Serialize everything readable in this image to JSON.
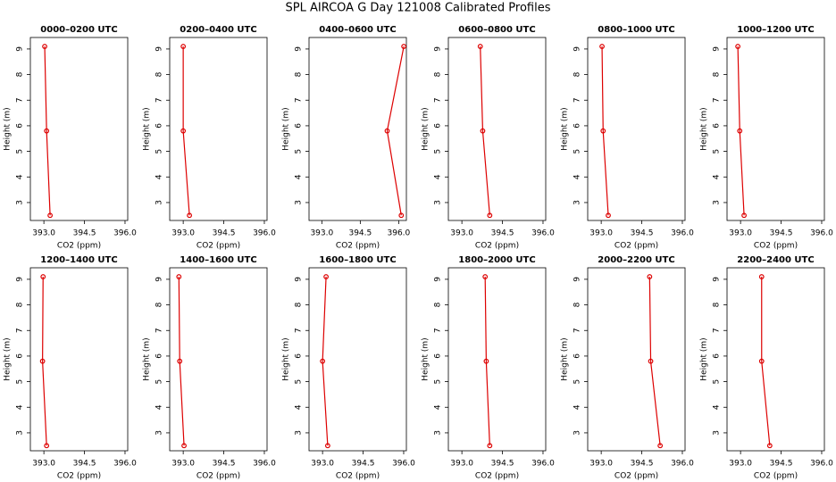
{
  "title": "SPL AIRCOA G  Day 121008  Calibrated Profiles",
  "chart_data": [
    {
      "type": "line",
      "title": "0000–0200 UTC",
      "x_label": "CO2 (ppm)",
      "y_label": "Height (m)",
      "color": "#dd0000",
      "x": [
        393.03,
        393.1,
        393.23
      ],
      "y": [
        9.1,
        5.8,
        2.5
      ],
      "xlim": [
        392.5,
        396.1
      ],
      "ylim": [
        2.3,
        9.45
      ],
      "xticks": [
        {
          "value": 393,
          "label": "393.0"
        },
        {
          "value": 394.5,
          "label": "394.5"
        },
        {
          "value": 396,
          "label": "396.0"
        }
      ],
      "yticks": [
        3,
        4,
        5,
        6,
        7,
        8,
        9
      ]
    },
    {
      "type": "line",
      "title": "0200–0400 UTC",
      "x_label": "CO2 (ppm)",
      "y_label": "Height (m)",
      "color": "#dd0000",
      "x": [
        393.0,
        393.0,
        393.23
      ],
      "y": [
        9.1,
        5.8,
        2.5
      ],
      "xlim": [
        392.5,
        396.1
      ],
      "ylim": [
        2.3,
        9.45
      ],
      "xticks": [
        {
          "value": 393,
          "label": "393.0"
        },
        {
          "value": 394.5,
          "label": "394.5"
        },
        {
          "value": 396,
          "label": "396.0"
        }
      ],
      "yticks": [
        3,
        4,
        5,
        6,
        7,
        8,
        9
      ]
    },
    {
      "type": "line",
      "title": "0400–0600 UTC",
      "x_label": "CO2 (ppm)",
      "y_label": "Height (m)",
      "color": "#dd0000",
      "x": [
        396.2,
        395.55,
        396.1
      ],
      "y": [
        9.1,
        5.8,
        2.5
      ],
      "xlim": [
        392.5,
        396.3
      ],
      "ylim": [
        2.3,
        9.45
      ],
      "xticks": [
        {
          "value": 393,
          "label": "393.0"
        },
        {
          "value": 394.5,
          "label": "394.5"
        },
        {
          "value": 396,
          "label": "396.0"
        }
      ],
      "yticks": [
        3,
        4,
        5,
        6,
        7,
        8,
        9
      ]
    },
    {
      "type": "line",
      "title": "0600–0800 UTC",
      "x_label": "CO2 (ppm)",
      "y_label": "Height (m)",
      "color": "#dd0000",
      "x": [
        393.68,
        393.77,
        394.03
      ],
      "y": [
        9.1,
        5.8,
        2.5
      ],
      "xlim": [
        392.5,
        396.1
      ],
      "ylim": [
        2.3,
        9.45
      ],
      "xticks": [
        {
          "value": 393,
          "label": "393.0"
        },
        {
          "value": 394.5,
          "label": "394.5"
        },
        {
          "value": 396,
          "label": "396.0"
        }
      ],
      "yticks": [
        3,
        4,
        5,
        6,
        7,
        8,
        9
      ]
    },
    {
      "type": "line",
      "title": "0800–1000 UTC",
      "x_label": "CO2 (ppm)",
      "y_label": "Height (m)",
      "color": "#dd0000",
      "x": [
        393.03,
        393.07,
        393.26
      ],
      "y": [
        9.1,
        5.8,
        2.5
      ],
      "xlim": [
        392.5,
        396.1
      ],
      "ylim": [
        2.3,
        9.45
      ],
      "xticks": [
        {
          "value": 393,
          "label": "393.0"
        },
        {
          "value": 394.5,
          "label": "394.5"
        },
        {
          "value": 396,
          "label": "396.0"
        }
      ],
      "yticks": [
        3,
        4,
        5,
        6,
        7,
        8,
        9
      ]
    },
    {
      "type": "line",
      "title": "1000–1200 UTC",
      "x_label": "CO2 (ppm)",
      "y_label": "Height (m)",
      "color": "#dd0000",
      "x": [
        392.9,
        392.97,
        393.13
      ],
      "y": [
        9.1,
        5.8,
        2.5
      ],
      "xlim": [
        392.5,
        396.1
      ],
      "ylim": [
        2.3,
        9.45
      ],
      "xticks": [
        {
          "value": 393,
          "label": "393.0"
        },
        {
          "value": 394.5,
          "label": "394.5"
        },
        {
          "value": 396,
          "label": "396.0"
        }
      ],
      "yticks": [
        3,
        4,
        5,
        6,
        7,
        8,
        9
      ]
    },
    {
      "type": "line",
      "title": "1200–1400 UTC",
      "x_label": "CO2 (ppm)",
      "y_label": "Height (m)",
      "color": "#dd0000",
      "x": [
        392.97,
        392.95,
        393.1
      ],
      "y": [
        9.1,
        5.8,
        2.5
      ],
      "xlim": [
        392.5,
        396.1
      ],
      "ylim": [
        2.3,
        9.45
      ],
      "xticks": [
        {
          "value": 393,
          "label": "393.0"
        },
        {
          "value": 394.5,
          "label": "394.5"
        },
        {
          "value": 396,
          "label": "396.0"
        }
      ],
      "yticks": [
        3,
        4,
        5,
        6,
        7,
        8,
        9
      ]
    },
    {
      "type": "line",
      "title": "1400–1600 UTC",
      "x_label": "CO2 (ppm)",
      "y_label": "Height (m)",
      "color": "#dd0000",
      "x": [
        392.84,
        392.87,
        393.03
      ],
      "y": [
        9.1,
        5.8,
        2.5
      ],
      "xlim": [
        392.5,
        396.1
      ],
      "ylim": [
        2.3,
        9.45
      ],
      "xticks": [
        {
          "value": 393,
          "label": "393.0"
        },
        {
          "value": 394.5,
          "label": "394.5"
        },
        {
          "value": 396,
          "label": "396.0"
        }
      ],
      "yticks": [
        3,
        4,
        5,
        6,
        7,
        8,
        9
      ]
    },
    {
      "type": "line",
      "title": "1600–1800 UTC",
      "x_label": "CO2 (ppm)",
      "y_label": "Height (m)",
      "color": "#dd0000",
      "x": [
        393.13,
        393.0,
        393.19
      ],
      "y": [
        9.1,
        5.8,
        2.5
      ],
      "xlim": [
        392.5,
        396.1
      ],
      "ylim": [
        2.3,
        9.45
      ],
      "xticks": [
        {
          "value": 393,
          "label": "393.0"
        },
        {
          "value": 394.5,
          "label": "394.5"
        },
        {
          "value": 396,
          "label": "396.0"
        }
      ],
      "yticks": [
        3,
        4,
        5,
        6,
        7,
        8,
        9
      ]
    },
    {
      "type": "line",
      "title": "1800–2000 UTC",
      "x_label": "CO2 (ppm)",
      "y_label": "Height (m)",
      "color": "#dd0000",
      "x": [
        393.86,
        393.9,
        394.03
      ],
      "y": [
        9.1,
        5.8,
        2.5
      ],
      "xlim": [
        392.5,
        396.1
      ],
      "ylim": [
        2.3,
        9.45
      ],
      "xticks": [
        {
          "value": 393,
          "label": "393.0"
        },
        {
          "value": 394.5,
          "label": "394.5"
        },
        {
          "value": 396,
          "label": "396.0"
        }
      ],
      "yticks": [
        3,
        4,
        5,
        6,
        7,
        8,
        9
      ]
    },
    {
      "type": "line",
      "title": "2000–2200 UTC",
      "x_label": "CO2 (ppm)",
      "y_label": "Height (m)",
      "color": "#dd0000",
      "x": [
        394.79,
        394.83,
        395.18
      ],
      "y": [
        9.1,
        5.8,
        2.5
      ],
      "xlim": [
        392.5,
        396.1
      ],
      "ylim": [
        2.3,
        9.45
      ],
      "xticks": [
        {
          "value": 393,
          "label": "393.0"
        },
        {
          "value": 394.5,
          "label": "394.5"
        },
        {
          "value": 396,
          "label": "396.0"
        }
      ],
      "yticks": [
        3,
        4,
        5,
        6,
        7,
        8,
        9
      ]
    },
    {
      "type": "line",
      "title": "2200–2400 UTC",
      "x_label": "CO2 (ppm)",
      "y_label": "Height (m)",
      "color": "#dd0000",
      "x": [
        393.78,
        393.78,
        394.08
      ],
      "y": [
        9.1,
        5.8,
        2.5
      ],
      "xlim": [
        392.5,
        396.1
      ],
      "ylim": [
        2.3,
        9.45
      ],
      "xticks": [
        {
          "value": 393,
          "label": "393.0"
        },
        {
          "value": 394.5,
          "label": "394.5"
        },
        {
          "value": 396,
          "label": "396.0"
        }
      ],
      "yticks": [
        3,
        4,
        5,
        6,
        7,
        8,
        9
      ]
    }
  ]
}
